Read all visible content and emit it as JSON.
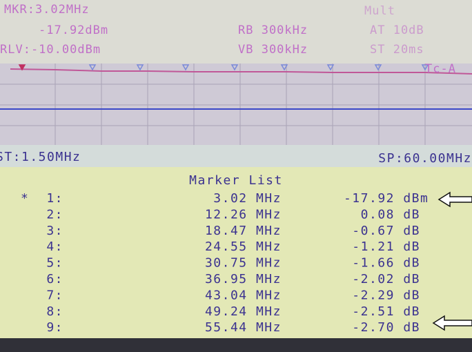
{
  "header": {
    "marker_freq": "MKR:3.02MHz",
    "marker_level": "-17.92dBm",
    "ref_level": "RLV:-10.00dBm",
    "rbw": "RB 300kHz",
    "vbw": "VB 300kHz",
    "mode": "Mult",
    "attenuation": "AT 10dB",
    "sweep_time": "ST 20ms",
    "trace": "Tc-A"
  },
  "span": {
    "start": "ST:1.50MHz",
    "stop": "SP:60.00MHz"
  },
  "marker_list": {
    "title": "Marker List",
    "active_symbol": "*",
    "rows": [
      {
        "marker": "1:",
        "frequency": "3.02 MHz",
        "level": "-17.92 dBm"
      },
      {
        "marker": "2:",
        "frequency": "12.26 MHz",
        "level": "0.08 dB"
      },
      {
        "marker": "3:",
        "frequency": "18.47 MHz",
        "level": "-0.67 dB"
      },
      {
        "marker": "4:",
        "frequency": "24.55 MHz",
        "level": "-1.21 dB"
      },
      {
        "marker": "5:",
        "frequency": "30.75 MHz",
        "level": "-1.66 dB"
      },
      {
        "marker": "6:",
        "frequency": "36.95 MHz",
        "level": "-2.02 dB"
      },
      {
        "marker": "7:",
        "frequency": "43.04 MHz",
        "level": "-2.29 dB"
      },
      {
        "marker": "8:",
        "frequency": "49.24 MHz",
        "level": "-2.51 dB"
      },
      {
        "marker": "9:",
        "frequency": "55.44 MHz",
        "level": "-2.70 dB"
      }
    ]
  }
}
